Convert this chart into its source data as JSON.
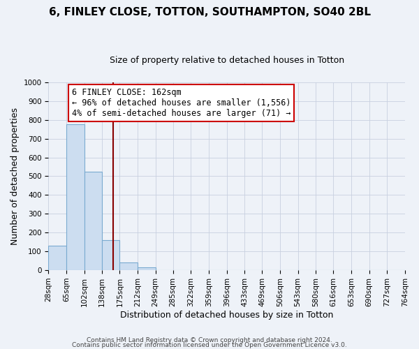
{
  "title": "6, FINLEY CLOSE, TOTTON, SOUTHAMPTON, SO40 2BL",
  "subtitle": "Size of property relative to detached houses in Totton",
  "xlabel": "Distribution of detached houses by size in Totton",
  "ylabel": "Number of detached properties",
  "bin_edges": [
    28,
    65,
    102,
    138,
    175,
    212,
    249,
    285,
    322,
    359,
    396,
    433,
    469,
    506,
    543,
    580,
    616,
    653,
    690,
    727,
    764
  ],
  "bar_heights": [
    130,
    778,
    525,
    160,
    40,
    15,
    0,
    0,
    0,
    0,
    0,
    0,
    0,
    0,
    0,
    0,
    0,
    0,
    0,
    0
  ],
  "bar_color": "#ccddf0",
  "bar_edge_color": "#7aaad0",
  "vline_color": "#880000",
  "vline_x": 162,
  "ylim": [
    0,
    1000
  ],
  "yticks": [
    0,
    100,
    200,
    300,
    400,
    500,
    600,
    700,
    800,
    900,
    1000
  ],
  "annotation_title": "6 FINLEY CLOSE: 162sqm",
  "annotation_line1": "← 96% of detached houses are smaller (1,556)",
  "annotation_line2": "4% of semi-detached houses are larger (71) →",
  "annotation_box_color": "#ffffff",
  "annotation_box_edge": "#cc0000",
  "footer1": "Contains HM Land Registry data © Crown copyright and database right 2024.",
  "footer2": "Contains public sector information licensed under the Open Government Licence v3.0.",
  "background_color": "#eef2f8",
  "grid_color": "#c8d0e0",
  "title_fontsize": 11,
  "subtitle_fontsize": 9,
  "ylabel_fontsize": 9,
  "xlabel_fontsize": 9,
  "tick_fontsize": 7.5,
  "annotation_fontsize": 8.5,
  "footer_fontsize": 6.5
}
